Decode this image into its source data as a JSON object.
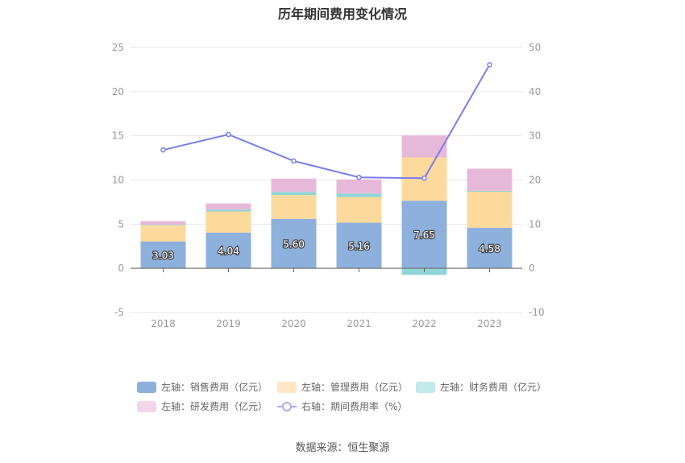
{
  "chart_data": {
    "type": "bar",
    "title": "历年期间费用变化情况",
    "categories": [
      "2018",
      "2019",
      "2020",
      "2021",
      "2022",
      "2023"
    ],
    "left_axis": {
      "ylim": [
        -5,
        25
      ],
      "ticks": [
        -5,
        0,
        5,
        10,
        15,
        20,
        25
      ]
    },
    "right_axis": {
      "ylim": [
        -10,
        50
      ],
      "ticks": [
        -10,
        0,
        10,
        20,
        30,
        40,
        50
      ]
    },
    "stacked": true,
    "series": [
      {
        "name": "左轴：销售费用（亿元）",
        "axis": "left",
        "kind": "bar",
        "color": "#8eb0dc",
        "values": [
          3.03,
          4.04,
          5.6,
          5.16,
          7.65,
          4.58
        ],
        "show_labels": true
      },
      {
        "name": "左轴：管理费用（亿元）",
        "axis": "left",
        "kind": "bar",
        "color": "#fcd99c",
        "values": [
          1.85,
          2.4,
          2.7,
          2.9,
          4.9,
          4.1
        ]
      },
      {
        "name": "左轴：财务费用（亿元）",
        "axis": "left",
        "kind": "bar",
        "color": "#8ed6d8",
        "values": [
          0.06,
          0.2,
          0.35,
          0.4,
          -0.75,
          0.1
        ]
      },
      {
        "name": "左轴：研发费用（亿元）",
        "axis": "left",
        "kind": "bar",
        "color": "#e7b9d9",
        "values": [
          0.4,
          0.7,
          1.5,
          1.6,
          2.5,
          2.5
        ]
      },
      {
        "name": "右轴：期间费用率（%）",
        "axis": "right",
        "kind": "line",
        "color": "#7b7ee8",
        "values": [
          26.8,
          30.3,
          24.3,
          20.6,
          20.4,
          46.1
        ]
      }
    ],
    "grid": true,
    "legend_position": "bottom"
  },
  "legend_labels": [
    "左轴：销售费用（亿元）",
    "左轴：管理费用（亿元）",
    "左轴：财务费用（亿元）",
    "左轴：研发费用（亿元）",
    "右轴：期间费用率（%）"
  ],
  "legend_colors": [
    "#8eb0dc",
    "#fde7c4",
    "#c3e9ea",
    "#f3d6ea",
    "#7b7ee8"
  ],
  "source": "数据来源：恒生聚源"
}
